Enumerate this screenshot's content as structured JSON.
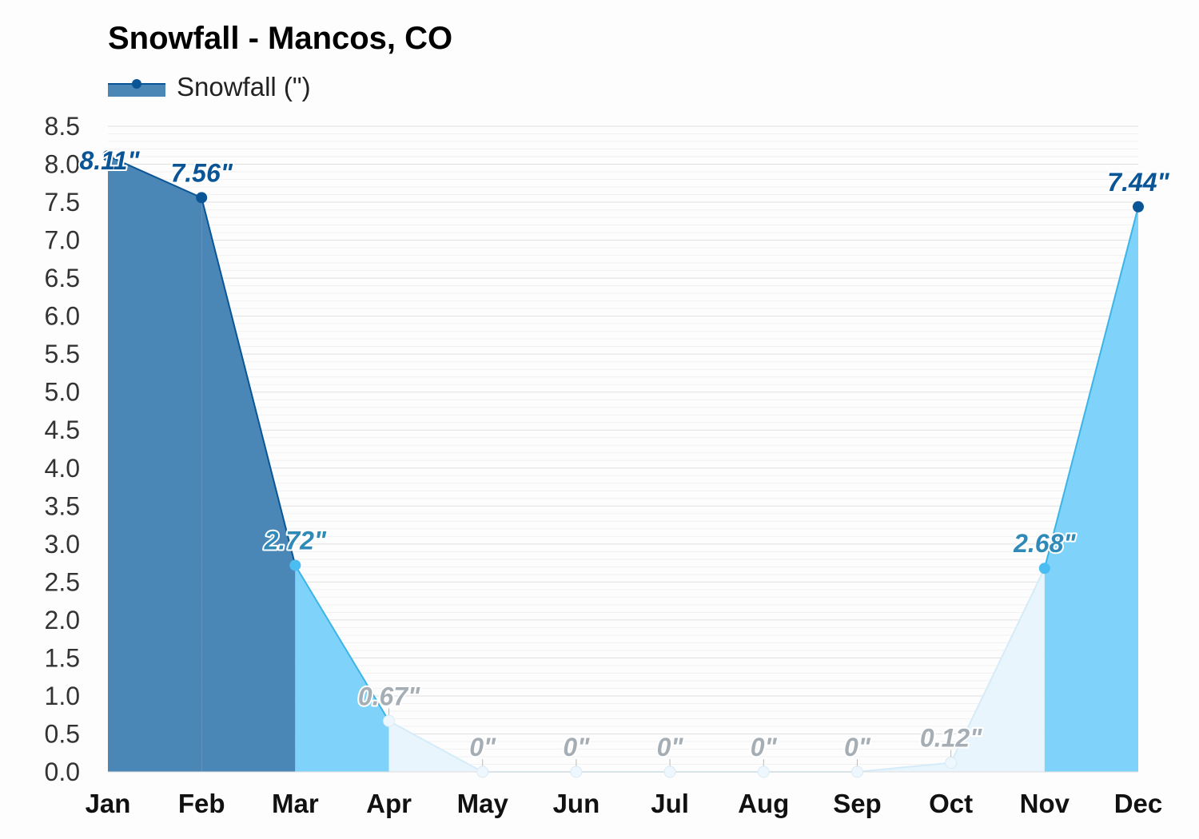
{
  "title": "Snowfall - Mancos, CO",
  "legend": {
    "label": "Snowfall (\")"
  },
  "colors": {
    "high": "#4a87b7",
    "high_line": "#0a5596",
    "mid": "#7fd3fa",
    "mid_line": "#3cb4e8",
    "low": "#e9f5fd",
    "low_line": "#d5ebf8",
    "grid": "#e6e6e6",
    "label_high": "#0a5596",
    "label_mid": "#2f8ab8",
    "label_low": "#a6aeb5"
  },
  "chart_data": {
    "type": "area",
    "title": "Snowfall - Mancos, CO",
    "xlabel": "",
    "ylabel": "",
    "categories": [
      "Jan",
      "Feb",
      "Mar",
      "Apr",
      "May",
      "Jun",
      "Jul",
      "Aug",
      "Sep",
      "Oct",
      "Nov",
      "Dec"
    ],
    "series": [
      {
        "name": "Snowfall (\")",
        "values": [
          8.11,
          7.56,
          2.72,
          0.67,
          0,
          0,
          0,
          0,
          0,
          0.12,
          2.68,
          7.44
        ],
        "data_labels": [
          "8.11\"",
          "7.56\"",
          "2.72\"",
          "0.67\"",
          "0\"",
          "0\"",
          "0\"",
          "0\"",
          "0\"",
          "0.12\"",
          "2.68\"",
          "7.44\""
        ]
      }
    ],
    "ylim": [
      0,
      8.5
    ],
    "yticks": [
      "0.0",
      "0.5",
      "1.0",
      "1.5",
      "2.0",
      "2.5",
      "3.0",
      "3.5",
      "4.0",
      "4.5",
      "5.0",
      "5.5",
      "6.0",
      "6.5",
      "7.0",
      "7.5",
      "8.0",
      "8.5"
    ],
    "grid": true,
    "legend_position": "top-left"
  }
}
